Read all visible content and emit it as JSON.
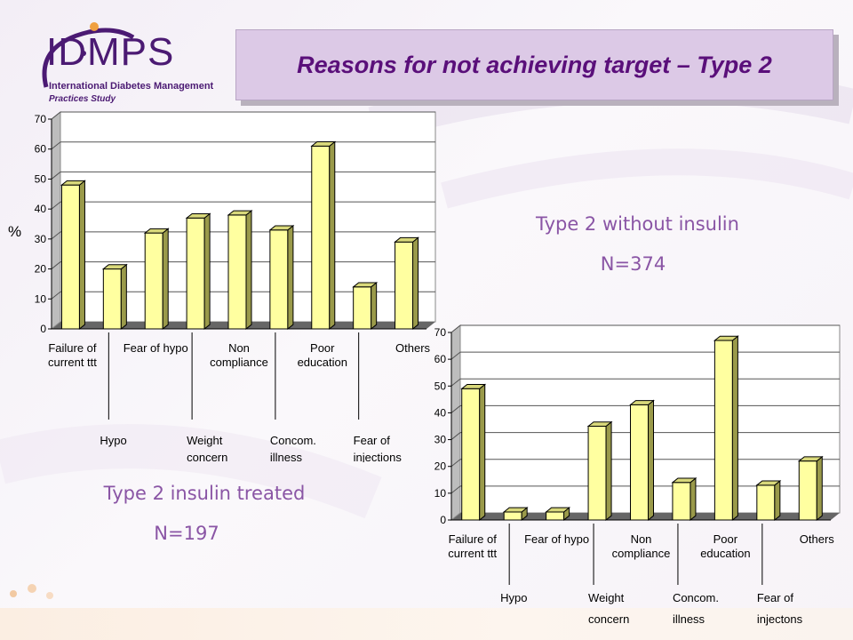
{
  "title": "Reasons for not achieving target – Type 2",
  "logo": {
    "abbr": "IDMPS",
    "line1": "International Diabetes Management",
    "line2": "Practices Study"
  },
  "captions": {
    "chart1_title": "Type 2 insulin treated",
    "chart1_n": "N=197",
    "chart2_title": "Type 2 without insulin",
    "chart2_n": "N=374"
  },
  "colors": {
    "bar_front": "#ffffa0",
    "bar_side": "#9a9a4a",
    "bar_top": "#d8d87a",
    "title_text": "#5a0f7a",
    "caption_text": "#8a55a5"
  },
  "chart_data": [
    {
      "type": "bar",
      "ylabel": "%",
      "ylim": [
        0,
        70
      ],
      "yticks": [
        0,
        10,
        20,
        30,
        40,
        50,
        60,
        70
      ],
      "grid": true,
      "categories": [
        "Failure of current ttt",
        "Hypo",
        "Fear of hypo",
        "Weight concern",
        "Non compliance",
        "Concom. illness",
        "Poor education",
        "Fear of injections",
        "Others"
      ],
      "values": [
        48,
        20,
        32,
        37,
        38,
        33,
        61,
        14,
        29
      ],
      "tick_labels_top": [
        [
          "Failure of",
          "current ttt"
        ],
        [
          "Fear of hypo"
        ],
        [
          "Non",
          "compliance"
        ],
        [
          "Poor",
          "education"
        ],
        [
          "Others"
        ]
      ],
      "tick_labels_bottom": [
        [
          "Hypo"
        ],
        [
          "Weight",
          "concern"
        ],
        [
          "Concom.",
          "illness"
        ],
        [
          "Fear of",
          "injections"
        ]
      ]
    },
    {
      "type": "bar",
      "ylim": [
        0,
        70
      ],
      "yticks": [
        0,
        10,
        20,
        30,
        40,
        50,
        60,
        70
      ],
      "grid": true,
      "categories": [
        "Failure of current ttt",
        "Hypo",
        "Fear of hypo",
        "Weight concern",
        "Non compliance",
        "Concom. illness",
        "Poor education",
        "Fear of injectons",
        "Others"
      ],
      "values": [
        49,
        3,
        3,
        35,
        43,
        14,
        67,
        13,
        22
      ],
      "tick_labels_top": [
        [
          "Failure of",
          "current ttt"
        ],
        [
          "Fear of hypo"
        ],
        [
          "Non",
          "compliance"
        ],
        [
          "Poor",
          "education"
        ],
        [
          "Others"
        ]
      ],
      "tick_labels_bottom": [
        [
          "Hypo"
        ],
        [
          "Weight",
          "concern"
        ],
        [
          "Concom.",
          "illness"
        ],
        [
          "Fear of",
          "injectons"
        ]
      ]
    }
  ]
}
